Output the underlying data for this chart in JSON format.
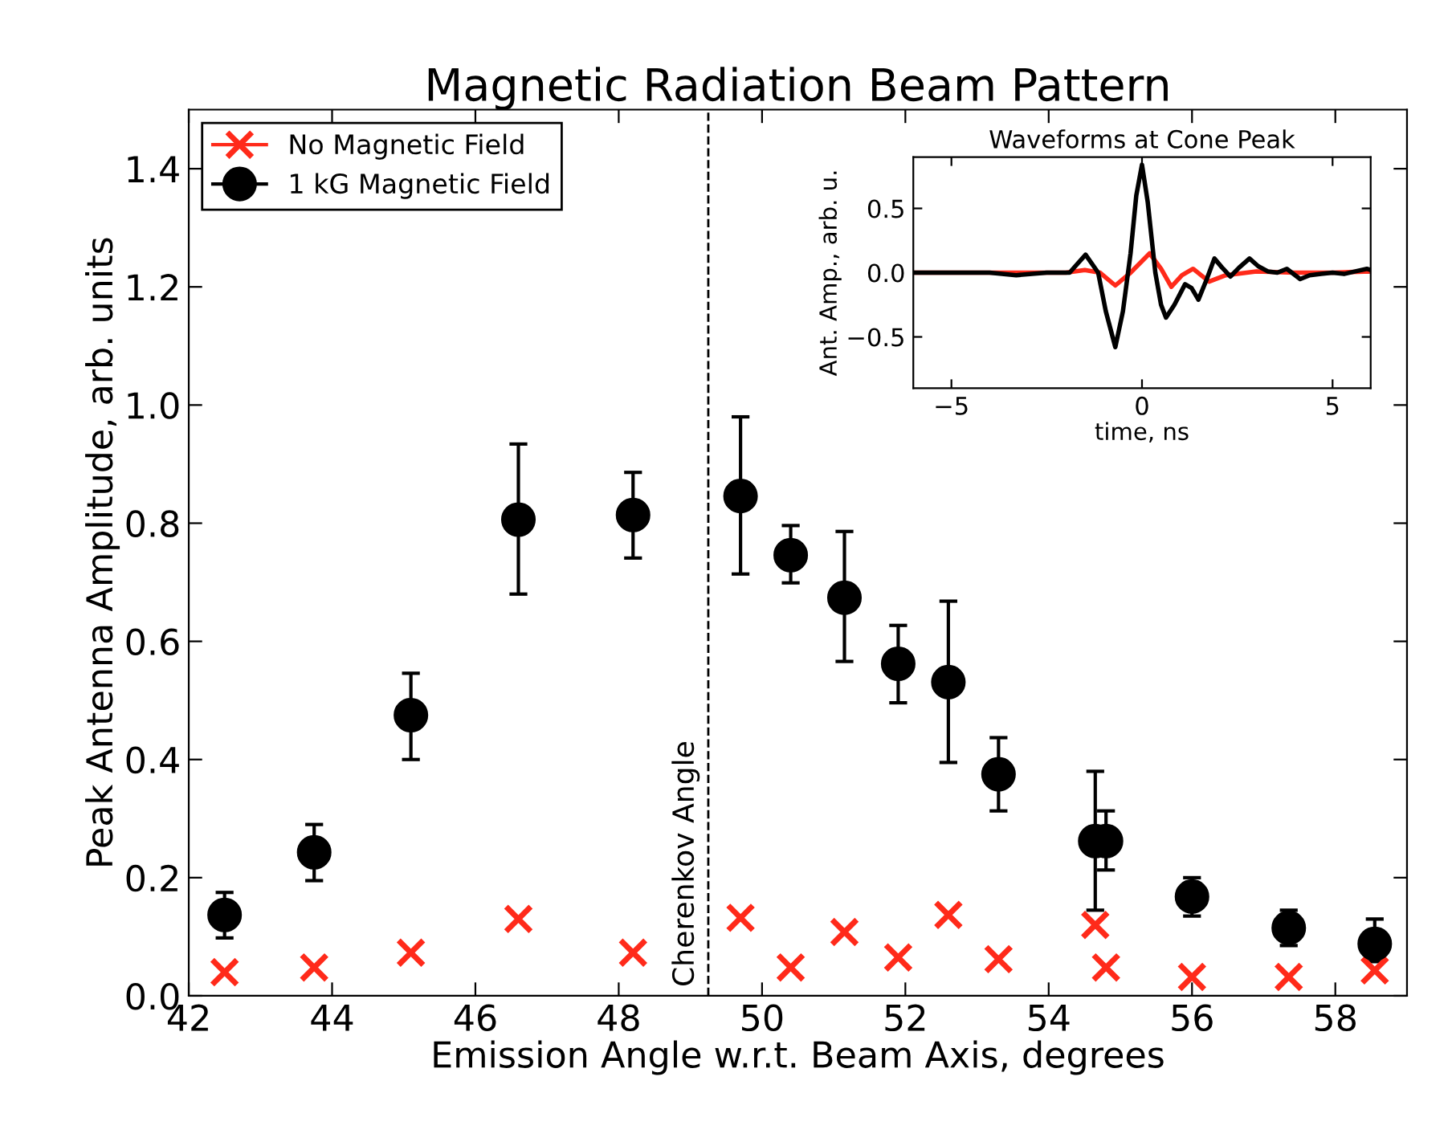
{
  "chart_data": [
    {
      "type": "scatter",
      "title": "Magnetic Radiation Beam Pattern",
      "xlabel": "Emission Angle w.r.t. Beam Axis, degrees",
      "ylabel": "Peak Antenna Amplitude, arb. units",
      "x": [
        42.5,
        43.75,
        45.1,
        46.6,
        48.2,
        49.7,
        50.4,
        51.15,
        51.9,
        52.6,
        53.3,
        54.65,
        54.8,
        56.0,
        57.35,
        58.55
      ],
      "series": [
        {
          "name": "No Magnetic Field",
          "color": "#ff2a1a",
          "marker": "cross",
          "values": [
            0.04,
            0.048,
            0.073,
            0.13,
            0.073,
            0.132,
            0.048,
            0.108,
            0.065,
            0.137,
            0.062,
            0.12,
            0.048,
            0.032,
            0.032,
            0.043
          ]
        },
        {
          "name": "1 kG Magnetic Field",
          "color": "#000000",
          "marker": "circle",
          "values": [
            0.137,
            0.243,
            0.475,
            0.806,
            0.814,
            0.846,
            0.746,
            0.674,
            0.562,
            0.531,
            0.375,
            0.262,
            0.262,
            0.168,
            0.115,
            0.088
          ],
          "errors": [
            [
              0.098,
              0.175
            ],
            [
              0.195,
              0.29
            ],
            [
              0.4,
              0.546
            ],
            [
              0.68,
              0.934
            ],
            [
              0.741,
              0.886
            ],
            [
              0.714,
              0.98
            ],
            [
              0.699,
              0.796
            ],
            [
              0.566,
              0.786
            ],
            [
              0.496,
              0.627
            ],
            [
              0.395,
              0.668
            ],
            [
              0.313,
              0.437
            ],
            [
              0.145,
              0.38
            ],
            [
              0.213,
              0.313
            ],
            [
              0.135,
              0.2
            ],
            [
              0.085,
              0.145
            ],
            [
              0.058,
              0.13
            ]
          ]
        }
      ],
      "xlim": [
        42,
        59
      ],
      "xticks": [
        42,
        44,
        46,
        48,
        50,
        52,
        54,
        56,
        58
      ],
      "ylim": [
        0,
        1.5
      ],
      "yticks": [
        {
          "value": 0,
          "label": "0.0"
        },
        {
          "value": 0.2,
          "label": "0.2"
        },
        {
          "value": 0.4,
          "label": "0.4"
        },
        {
          "value": 0.6,
          "label": "0.6"
        },
        {
          "value": 0.8,
          "label": "0.8"
        },
        {
          "value": 1.0,
          "label": "1.0"
        },
        {
          "value": 1.2,
          "label": "1.2"
        },
        {
          "value": 1.4,
          "label": "1.4"
        }
      ],
      "ref_lines": [
        {
          "axis": "x",
          "value": 49.25,
          "label": "Cherenkov Angle",
          "color": "#000000",
          "line_style": "dashed"
        }
      ],
      "legend": "top left",
      "grid": false
    },
    {
      "type": "line",
      "title": "Waveforms at Cone Peak",
      "xlabel": "time, ns",
      "ylabel": "Ant. Amp., arb. u.",
      "series": [
        {
          "color": "#ff2a1a",
          "x": [
            -6,
            -2,
            -1.5,
            -1.1,
            -0.7,
            -0.3,
            0.2,
            0.5,
            0.77,
            1.05,
            1.34,
            1.76,
            2.2,
            3,
            4,
            5,
            6
          ],
          "values": [
            0,
            0,
            0.02,
            0,
            -0.1,
            0.0,
            0.15,
            0.03,
            -0.11,
            -0.02,
            0.03,
            -0.07,
            -0.02,
            0.01,
            0,
            0,
            0.01
          ]
        },
        {
          "color": "#000000",
          "x": [
            -6,
            -4,
            -3.3,
            -2.5,
            -1.9,
            -1.48,
            -1.15,
            -0.95,
            -0.7,
            -0.5,
            -0.3,
            -0.15,
            0,
            0.15,
            0.35,
            0.5,
            0.63,
            0.85,
            1.13,
            1.3,
            1.48,
            1.7,
            1.9,
            2.1,
            2.32,
            2.55,
            2.82,
            3.05,
            3.3,
            3.55,
            3.8,
            4.15,
            4.4,
            4.7,
            5.0,
            5.3,
            5.6,
            5.9,
            6.0
          ],
          "values": [
            0,
            0,
            -0.02,
            0,
            0,
            0.14,
            0,
            -0.3,
            -0.58,
            -0.3,
            0.15,
            0.6,
            0.84,
            0.55,
            0,
            -0.25,
            -0.35,
            -0.25,
            -0.09,
            -0.12,
            -0.21,
            -0.05,
            0.11,
            0.04,
            -0.03,
            0.04,
            0.11,
            0.05,
            0.01,
            0.0,
            0.03,
            -0.05,
            -0.02,
            -0.01,
            0.0,
            -0.01,
            0.01,
            0.03,
            0.02
          ]
        }
      ],
      "xlim": [
        -6,
        6
      ],
      "xticks": [
        {
          "value": -5,
          "label": "−5"
        },
        0,
        5
      ],
      "ylim": [
        -0.9,
        0.9
      ],
      "yticks": [
        {
          "value": -0.5,
          "label": "−0.5"
        },
        {
          "value": 0,
          "label": "0.0"
        },
        {
          "value": 0.5,
          "label": "0.5"
        }
      ],
      "grid": false,
      "line_style": "solid"
    }
  ]
}
